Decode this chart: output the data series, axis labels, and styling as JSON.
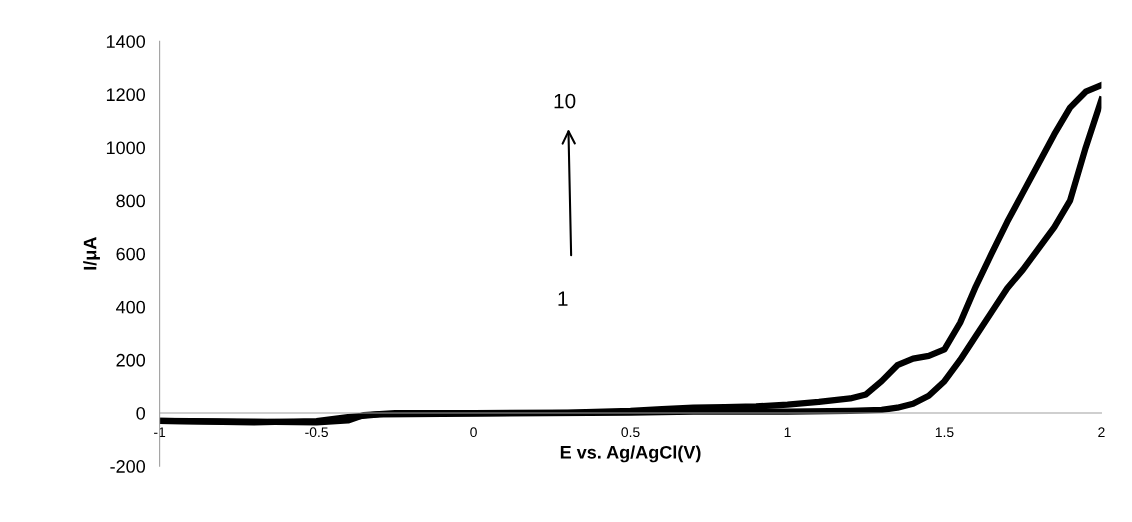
{
  "chart_data": {
    "type": "line",
    "xlabel": "E vs. Ag/AgCl(V)",
    "ylabel": "I/μA",
    "xlim": [
      -1,
      2
    ],
    "xticks": [
      -1,
      -0.5,
      0,
      0.5,
      1,
      1.5,
      2
    ],
    "ylim": [
      -200,
      1400
    ],
    "yticks": [
      -200,
      0,
      200,
      400,
      600,
      800,
      1000,
      1200,
      1400
    ],
    "grid": false,
    "legend": false,
    "marker": "none",
    "line_style": "solid",
    "annotations": [
      "10",
      "1"
    ],
    "series": [
      {
        "color": "#000000",
        "x": [
          -1,
          -0.7,
          -0.5,
          -0.4,
          -0.35,
          -0.25,
          0,
          0.3,
          0.5,
          0.6,
          0.7,
          0.8,
          0.9,
          1.0,
          1.1,
          1.2,
          1.25,
          1.3,
          1.35,
          1.4,
          1.45,
          1.5,
          1.55,
          1.6,
          1.65,
          1.7,
          1.75,
          1.8,
          1.85,
          1.9,
          1.95,
          2.0
        ],
        "values": [
          -30,
          -32,
          -35,
          -28,
          -8,
          0,
          0,
          2,
          8,
          15,
          20,
          22,
          25,
          32,
          42,
          55,
          70,
          120,
          180,
          205,
          215,
          240,
          340,
          477,
          600,
          720,
          830,
          940,
          1050,
          1150,
          1210,
          1235
        ]
      },
      {
        "color": "#000000",
        "x": [
          -1,
          -0.7,
          -0.5,
          -0.4,
          -0.3,
          0,
          0.5,
          0.7,
          1.0,
          1.2,
          1.3,
          1.35,
          1.4,
          1.45,
          1.5,
          1.55,
          1.6,
          1.65,
          1.7,
          1.75,
          1.8,
          1.85,
          1.9,
          1.95,
          2.0
        ],
        "values": [
          -30,
          -35,
          -30,
          -15,
          -5,
          -2,
          2,
          5,
          5,
          8,
          12,
          20,
          35,
          65,
          120,
          200,
          290,
          380,
          470,
          540,
          620,
          700,
          800,
          1000,
          1180
        ]
      }
    ]
  }
}
